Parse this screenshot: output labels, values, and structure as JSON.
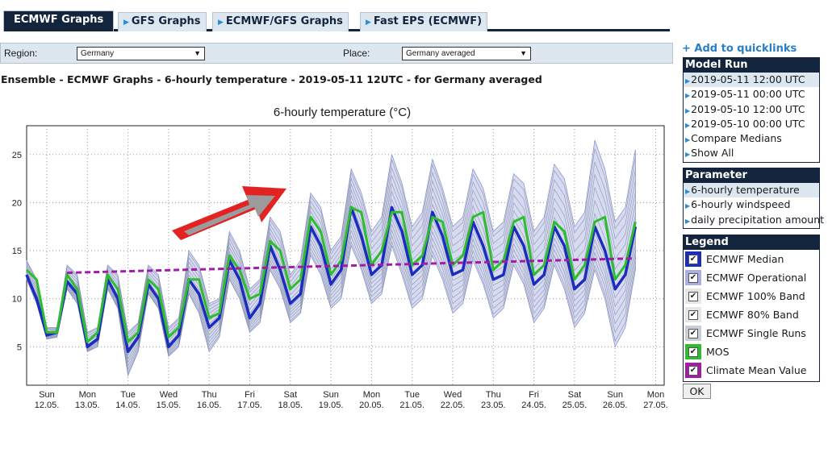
{
  "tabs": [
    {
      "label": "ECMWF Graphs",
      "active": true
    },
    {
      "label": "GFS Graphs",
      "active": false
    },
    {
      "label": "ECMWF/GFS Graphs",
      "active": false
    },
    {
      "label": "Fast EPS (ECMWF)",
      "active": false
    }
  ],
  "region_bar": {
    "region_label": "Region:",
    "region_value": "Germany",
    "place_label": "Place:",
    "place_value": "Germany averaged"
  },
  "subtitle": "Ensemble - ECMWF Graphs - 6-hourly temperature - 2019-05-11 12UTC - for Germany averaged",
  "quicklinks": "+ Add to quicklinks",
  "model_run": {
    "title": "Model Run",
    "items": [
      "2019-05-11 12:00 UTC",
      "2019-05-11 00:00 UTC",
      "2019-05-10 12:00 UTC",
      "2019-05-10 00:00 UTC",
      "Compare Medians",
      "Show All"
    ]
  },
  "parameter": {
    "title": "Parameter",
    "items": [
      "6-hourly temperature",
      "6-hourly windspeed",
      "daily precipitation amount"
    ]
  },
  "legend": {
    "title": "Legend",
    "items": [
      {
        "label": "ECMWF Median",
        "color": "#1a2dbf"
      },
      {
        "label": "ECMWF Operational",
        "color": "#a9aee6"
      },
      {
        "label": "ECMWF 100% Band",
        "color": "#e6e6e6"
      },
      {
        "label": "ECMWF 80% Band",
        "color": "#e6e6e6"
      },
      {
        "label": "ECMWF Single Runs",
        "color": "#c8cdd6"
      },
      {
        "label": "MOS",
        "color": "#2ebd2e"
      },
      {
        "label": "Climate Mean Value",
        "color": "#a21ca8"
      }
    ]
  },
  "ok_label": "OK",
  "chart_data": {
    "type": "line",
    "title": "6-hourly temperature (°C)",
    "ylim": [
      1,
      28
    ],
    "yticks": [
      5,
      10,
      15,
      20,
      25
    ],
    "x_day_labels": [
      {
        "day": "Sun",
        "date": "12.05."
      },
      {
        "day": "Mon",
        "date": "13.05."
      },
      {
        "day": "Tue",
        "date": "14.05."
      },
      {
        "day": "Wed",
        "date": "15.05."
      },
      {
        "day": "Thu",
        "date": "16.05."
      },
      {
        "day": "Fri",
        "date": "17.05."
      },
      {
        "day": "Sat",
        "date": "18.05."
      },
      {
        "day": "Sun",
        "date": "19.05."
      },
      {
        "day": "Mon",
        "date": "20.05."
      },
      {
        "day": "Tue",
        "date": "21.05."
      },
      {
        "day": "Wed",
        "date": "22.05."
      },
      {
        "day": "Thu",
        "date": "23.05."
      },
      {
        "day": "Fri",
        "date": "24.05."
      },
      {
        "day": "Sat",
        "date": "25.05."
      },
      {
        "day": "Sun",
        "date": "26.05."
      },
      {
        "day": "Mon",
        "date": "27.05."
      }
    ],
    "grid": true,
    "steps_per_day": 4,
    "series": [
      {
        "name": "ECMWF Median",
        "color": "#1a2dbf",
        "values": [
          12.5,
          10,
          6.2,
          6.5,
          11.8,
          10.5,
          5,
          5.8,
          12,
          10,
          4.5,
          6,
          11.5,
          10,
          5,
          6.2,
          12,
          10.5,
          7,
          8,
          14,
          12,
          8,
          9.5,
          15.5,
          13,
          9.5,
          10.5,
          17.5,
          15.5,
          11.5,
          13,
          19.5,
          16.5,
          12.5,
          13.5,
          19.5,
          17,
          12.5,
          13.5,
          19,
          16.5,
          12.5,
          13,
          18,
          15.5,
          12,
          12.5,
          17.5,
          15.5,
          11.5,
          12.5,
          17.5,
          15.5,
          11,
          12,
          17.5,
          15,
          11,
          12.5,
          17.5
        ]
      },
      {
        "name": "MOS",
        "color": "#2ebd2e",
        "values": [
          13,
          12,
          6.5,
          6.5,
          12.5,
          11,
          5.5,
          6.5,
          12.5,
          11,
          5.5,
          6.5,
          12,
          11,
          6,
          7,
          12,
          12,
          8,
          8.5,
          14.5,
          13,
          10,
          10.5,
          16,
          15,
          11,
          12,
          18.5,
          17,
          12.5,
          14,
          19.5,
          19,
          13.5,
          15,
          19,
          19,
          13.5,
          14.5,
          18.5,
          18,
          13.5,
          14.5,
          18.5,
          19,
          13,
          14,
          18,
          18.5,
          12.5,
          13.5,
          18,
          17,
          12,
          13.5,
          18,
          18.5,
          12,
          13.5,
          18
        ]
      },
      {
        "name": "Climate Mean Value",
        "color": "#a21ca8",
        "values": [
          12.7,
          14.2
        ]
      }
    ],
    "band_100": {
      "upper": [
        14,
        12,
        7,
        7,
        13.5,
        12.5,
        6.5,
        7,
        13.5,
        12.5,
        6.5,
        7.5,
        13.5,
        12.5,
        7,
        8,
        15,
        13.5,
        9.5,
        10,
        17,
        15,
        11,
        12,
        18.5,
        17,
        12.5,
        14,
        21,
        19.5,
        15,
        16.5,
        23.5,
        21,
        17,
        18.5,
        25,
        22,
        17.5,
        19,
        24.5,
        21.5,
        17.5,
        18.5,
        23.5,
        21.5,
        17,
        18,
        23,
        22,
        17,
        18.5,
        24,
        22.5,
        17.5,
        19,
        26.5,
        23.5,
        18,
        19.5,
        25.5
      ],
      "lower": [
        12,
        9.5,
        5.8,
        6,
        11,
        9.5,
        4.5,
        5,
        11,
        9,
        2,
        4.5,
        10.5,
        9,
        4,
        5,
        10.5,
        8.5,
        4.5,
        6,
        12,
        10,
        6.5,
        7.5,
        13,
        11,
        7.5,
        8.5,
        14.5,
        12.5,
        9,
        10,
        15.5,
        13,
        9.5,
        10.5,
        15.5,
        12.5,
        9,
        10,
        14.5,
        12,
        8.5,
        9.5,
        14,
        11.5,
        8,
        9,
        13.5,
        11.5,
        7.5,
        9,
        13.5,
        11,
        7,
        8.5,
        13,
        10,
        5,
        7,
        13
      ]
    }
  }
}
